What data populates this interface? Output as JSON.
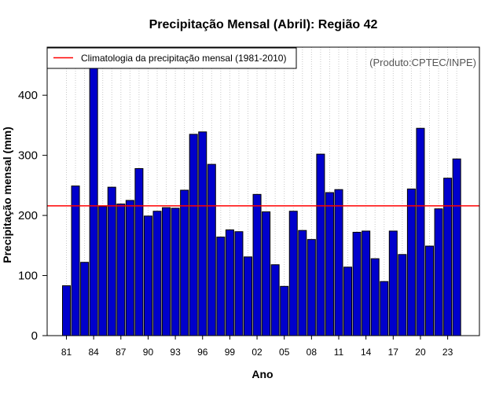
{
  "chart_data": {
    "type": "bar",
    "title": "Precipitação Mensal (Abril): Região 42",
    "xlabel": "Ano",
    "ylabel": "Precipitação mensal (mm)",
    "ylim": [
      0,
      480
    ],
    "yticks": [
      0,
      100,
      200,
      300,
      400
    ],
    "grid": "vertical-dotted",
    "categories": [
      "1981",
      "1982",
      "1983",
      "1984",
      "1985",
      "1986",
      "1987",
      "1988",
      "1989",
      "1990",
      "1991",
      "1992",
      "1993",
      "1994",
      "1995",
      "1996",
      "1997",
      "1998",
      "1999",
      "2000",
      "2001",
      "2002",
      "2003",
      "2004",
      "2005",
      "2006",
      "2007",
      "2008",
      "2009",
      "2010",
      "2011",
      "2012",
      "2013",
      "2014",
      "2015",
      "2016",
      "2017",
      "2018",
      "2019",
      "2020",
      "2021",
      "2022",
      "2023",
      "2024"
    ],
    "xtick_labels": [
      {
        "index": 0,
        "label": "81"
      },
      {
        "index": 3,
        "label": "84"
      },
      {
        "index": 6,
        "label": "87"
      },
      {
        "index": 9,
        "label": "90"
      },
      {
        "index": 12,
        "label": "93"
      },
      {
        "index": 15,
        "label": "96"
      },
      {
        "index": 18,
        "label": "99"
      },
      {
        "index": 21,
        "label": "02"
      },
      {
        "index": 24,
        "label": "05"
      },
      {
        "index": 27,
        "label": "08"
      },
      {
        "index": 30,
        "label": "11"
      },
      {
        "index": 33,
        "label": "14"
      },
      {
        "index": 36,
        "label": "17"
      },
      {
        "index": 39,
        "label": "20"
      },
      {
        "index": 42,
        "label": "23"
      }
    ],
    "values": [
      83,
      249,
      122,
      447,
      215,
      247,
      219,
      225,
      278,
      199,
      207,
      213,
      212,
      242,
      335,
      339,
      285,
      164,
      176,
      173,
      131,
      235,
      206,
      118,
      82,
      207,
      175,
      160,
      302,
      238,
      243,
      114,
      172,
      174,
      128,
      90,
      174,
      135,
      244,
      345,
      149,
      211,
      262,
      294
    ],
    "bar_color": "#0000cc",
    "reference_line": {
      "value": 216,
      "color": "#ff0000",
      "label": "Climatologia da precipitação mensal (1981-2010)"
    },
    "legend_position": "top-left",
    "annotation": "(Produto:CPTEC/INPE)"
  }
}
